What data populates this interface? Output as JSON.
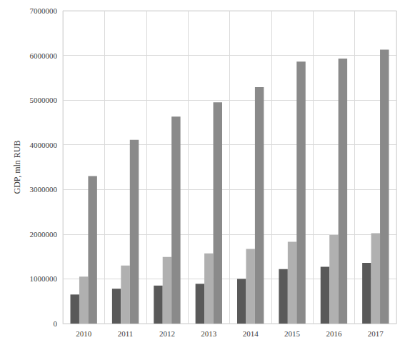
{
  "chart_data": {
    "type": "bar",
    "y_label": "GDP, mln RUB",
    "categories": [
      "2010",
      "2011",
      "2012",
      "2013",
      "2014",
      "2015",
      "2016",
      "2017"
    ],
    "series": [
      {
        "color": "#595959",
        "values": [
          650000,
          780000,
          850000,
          890000,
          1000000,
          1220000,
          1270000,
          1360000
        ]
      },
      {
        "color": "#b0b0b0",
        "values": [
          1050000,
          1300000,
          1490000,
          1570000,
          1670000,
          1830000,
          1980000,
          2020000
        ]
      },
      {
        "color": "#8a8a8a",
        "values": [
          3300000,
          4110000,
          4630000,
          4950000,
          5290000,
          5860000,
          5930000,
          6130000
        ]
      }
    ],
    "ylim": [
      0,
      7000000
    ],
    "yticks": [
      0,
      1000000,
      2000000,
      3000000,
      4000000,
      5000000,
      6000000,
      7000000
    ],
    "grid": true
  }
}
